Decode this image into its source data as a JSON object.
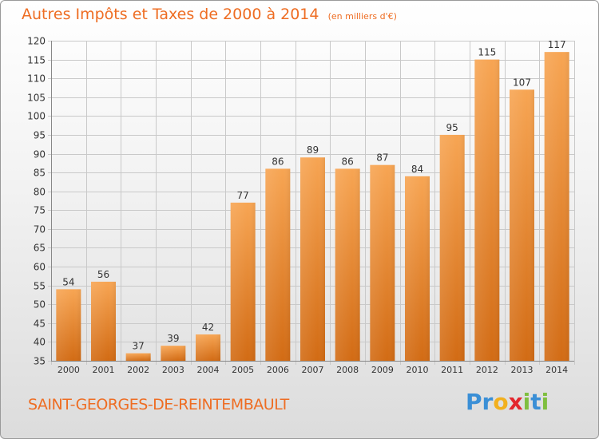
{
  "title": "Autres Impôts et Taxes de 2000 à 2014",
  "subtitle": "(en milliers d'€)",
  "commune": "SAINT-GEORGES-DE-REINTEMBAULT",
  "logo": {
    "text": "Proxiti",
    "letters": [
      {
        "ch": "P",
        "color": "#3a8fd6"
      },
      {
        "ch": "r",
        "color": "#3a8fd6"
      },
      {
        "ch": "o",
        "color": "#f2b01e"
      },
      {
        "ch": "x",
        "color": "#e3262e"
      },
      {
        "ch": "i",
        "color": "#7fbf3f"
      },
      {
        "ch": "t",
        "color": "#3a8fd6"
      },
      {
        "ch": "i",
        "color": "#7fbf3f"
      }
    ]
  },
  "colors": {
    "accent": "#ee6d23",
    "bar_top": "#f7a553",
    "bar_bottom": "#d26b14",
    "grid": "#c9c9c9",
    "text": "#333333"
  },
  "chart_data": {
    "type": "bar",
    "categories": [
      "2000",
      "2001",
      "2002",
      "2003",
      "2004",
      "2005",
      "2006",
      "2007",
      "2008",
      "2009",
      "2010",
      "2011",
      "2012",
      "2013",
      "2014"
    ],
    "values": [
      54,
      56,
      37,
      39,
      42,
      77,
      86,
      89,
      86,
      87,
      84,
      95,
      115,
      107,
      117
    ],
    "ylim": [
      35,
      120
    ],
    "yticks": [
      35,
      40,
      45,
      50,
      55,
      60,
      65,
      70,
      75,
      80,
      85,
      90,
      95,
      100,
      105,
      110,
      115,
      120
    ],
    "grid": true,
    "xlabel": "",
    "ylabel": ""
  }
}
